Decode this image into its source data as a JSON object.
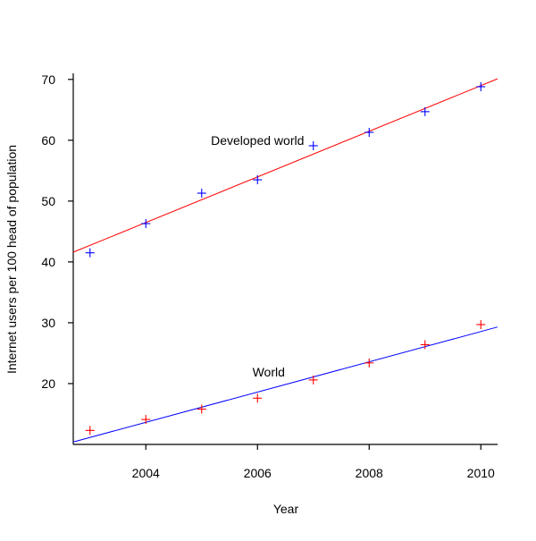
{
  "chart_data": {
    "type": "scatter",
    "title": "",
    "xlabel": "Year",
    "ylabel": "Internet users per 100 head of population",
    "xlim": [
      2002.7,
      2010.3
    ],
    "ylim": [
      10,
      71
    ],
    "x_ticks": [
      2004,
      2006,
      2008,
      2010
    ],
    "y_ticks": [
      20,
      30,
      40,
      50,
      60,
      70
    ],
    "grid": false,
    "legend": "none",
    "series": [
      {
        "label": "Developed world",
        "point_color": "#0000ff",
        "line_color": "#ff0000",
        "marker": "plus",
        "x": [
          2003,
          2004,
          2005,
          2006,
          2007,
          2008,
          2009,
          2010
        ],
        "y": [
          41.5,
          46.3,
          51.3,
          53.5,
          59.1,
          61.3,
          64.7,
          68.8
        ],
        "fit_line": {
          "x": [
            2002.7,
            2010.3
          ],
          "y": [
            41.6,
            70.1
          ]
        }
      },
      {
        "label": "World",
        "point_color": "#ff0000",
        "line_color": "#0000ff",
        "marker": "plus",
        "x": [
          2003,
          2004,
          2005,
          2006,
          2007,
          2008,
          2009,
          2010
        ],
        "y": [
          12.3,
          14.1,
          15.8,
          17.6,
          20.6,
          23.4,
          26.4,
          29.7
        ],
        "fit_line": {
          "x": [
            2002.7,
            2010.3
          ],
          "y": [
            10.4,
            29.3
          ]
        }
      }
    ],
    "annotations": [
      {
        "text": "Developed world",
        "x": 2006,
        "y": 60
      },
      {
        "text": "World",
        "x": 2006.2,
        "y": 21.9
      }
    ]
  }
}
